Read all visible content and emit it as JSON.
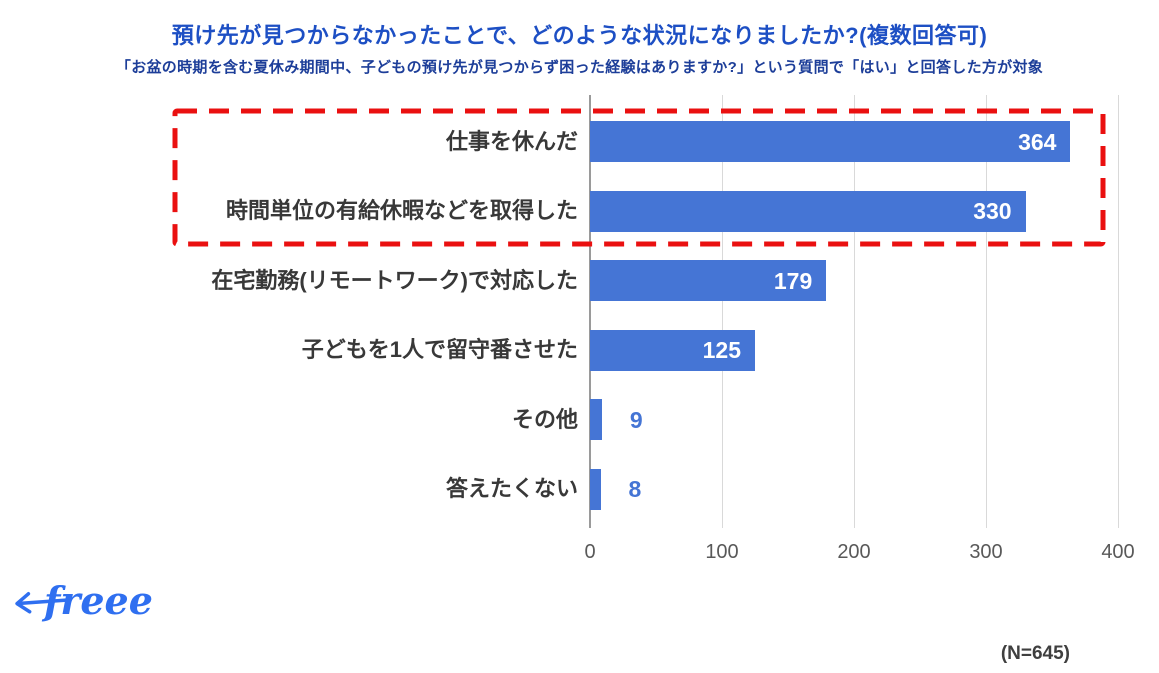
{
  "title": "預け先が見つからなかったことで、どのような状況になりましたか?(複数回答可)",
  "subtitle": "「お盆の時期を含む夏休み期間中、子どもの預け先が見つからず困った経験はありますか?」という質問で「はい」と回答した方が対象",
  "sample_note": "(N=645)",
  "logo_text": "freee",
  "colors": {
    "bar": "#4575d5",
    "title_text": "#1d4fc4",
    "subtitle_text": "#1d3e99",
    "highlight_box": "#ea1010",
    "value_inside": "#ffffff",
    "value_outside": "#4575d5",
    "logo": "#2f6ff0",
    "gridline": "#d9d9d9",
    "axis_line": "#9a9a9a"
  },
  "chart_data": {
    "type": "bar",
    "orientation": "horizontal",
    "title": "預け先が見つからなかったことで、どのような状況になりましたか?(複数回答可)",
    "categories": [
      "仕事を休んだ",
      "時間単位の有給休暇などを取得した",
      "在宅勤務(リモートワーク)で対応した",
      "子どもを1人で留守番させた",
      "その他",
      "答えたくない"
    ],
    "values": [
      364,
      330,
      179,
      125,
      9,
      8
    ],
    "xlim": [
      0,
      400
    ],
    "xticks": [
      0,
      100,
      200,
      300,
      400
    ],
    "legend": "none",
    "grid": "vertical-light",
    "value_labels": "shown (white inside bar for large values, blue outside for small values)",
    "highlighted_categories": [
      "仕事を休んだ",
      "時間単位の有給休暇などを取得した"
    ],
    "highlight_style": "red dashed rectangle around top two bars",
    "sample_size": 645
  }
}
